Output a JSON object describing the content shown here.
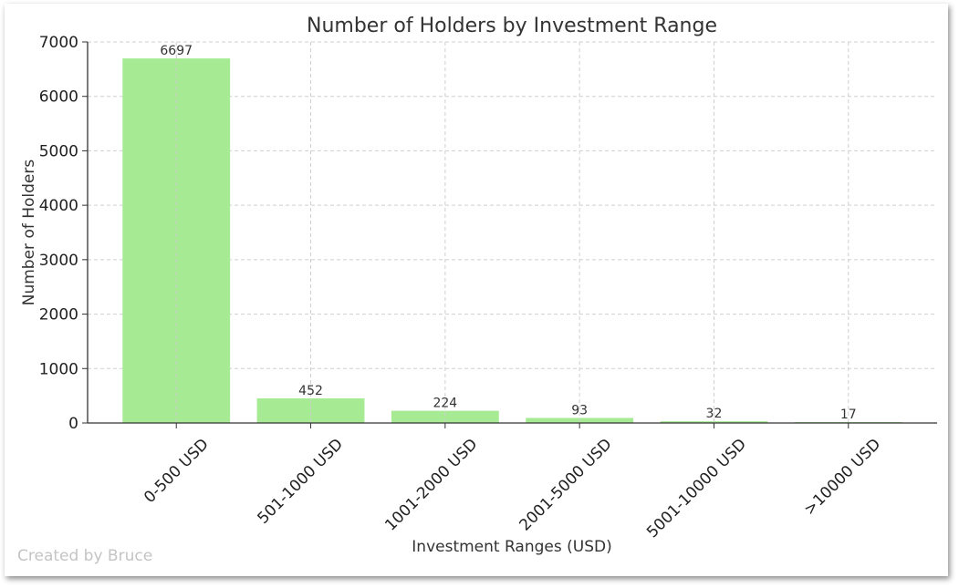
{
  "chart_data": {
    "type": "bar",
    "title": "Number of Holders by Investment Range",
    "xlabel": "Investment Ranges (USD)",
    "ylabel": "Number of Holders",
    "categories": [
      "0-500 USD",
      "501-1000 USD",
      "1001-2000 USD",
      "2001-5000 USD",
      "5001-10000 USD",
      ">10000 USD"
    ],
    "values": [
      6697,
      452,
      224,
      93,
      32,
      17
    ],
    "data_labels": [
      "6697",
      "452",
      "224",
      "93",
      "32",
      "17"
    ],
    "ylim": [
      0,
      7000
    ],
    "yticks": [
      0,
      1000,
      2000,
      3000,
      4000,
      5000,
      6000,
      7000
    ],
    "grid": true,
    "bar_color": "#a6ea94"
  },
  "watermark": "Created by Bruce"
}
